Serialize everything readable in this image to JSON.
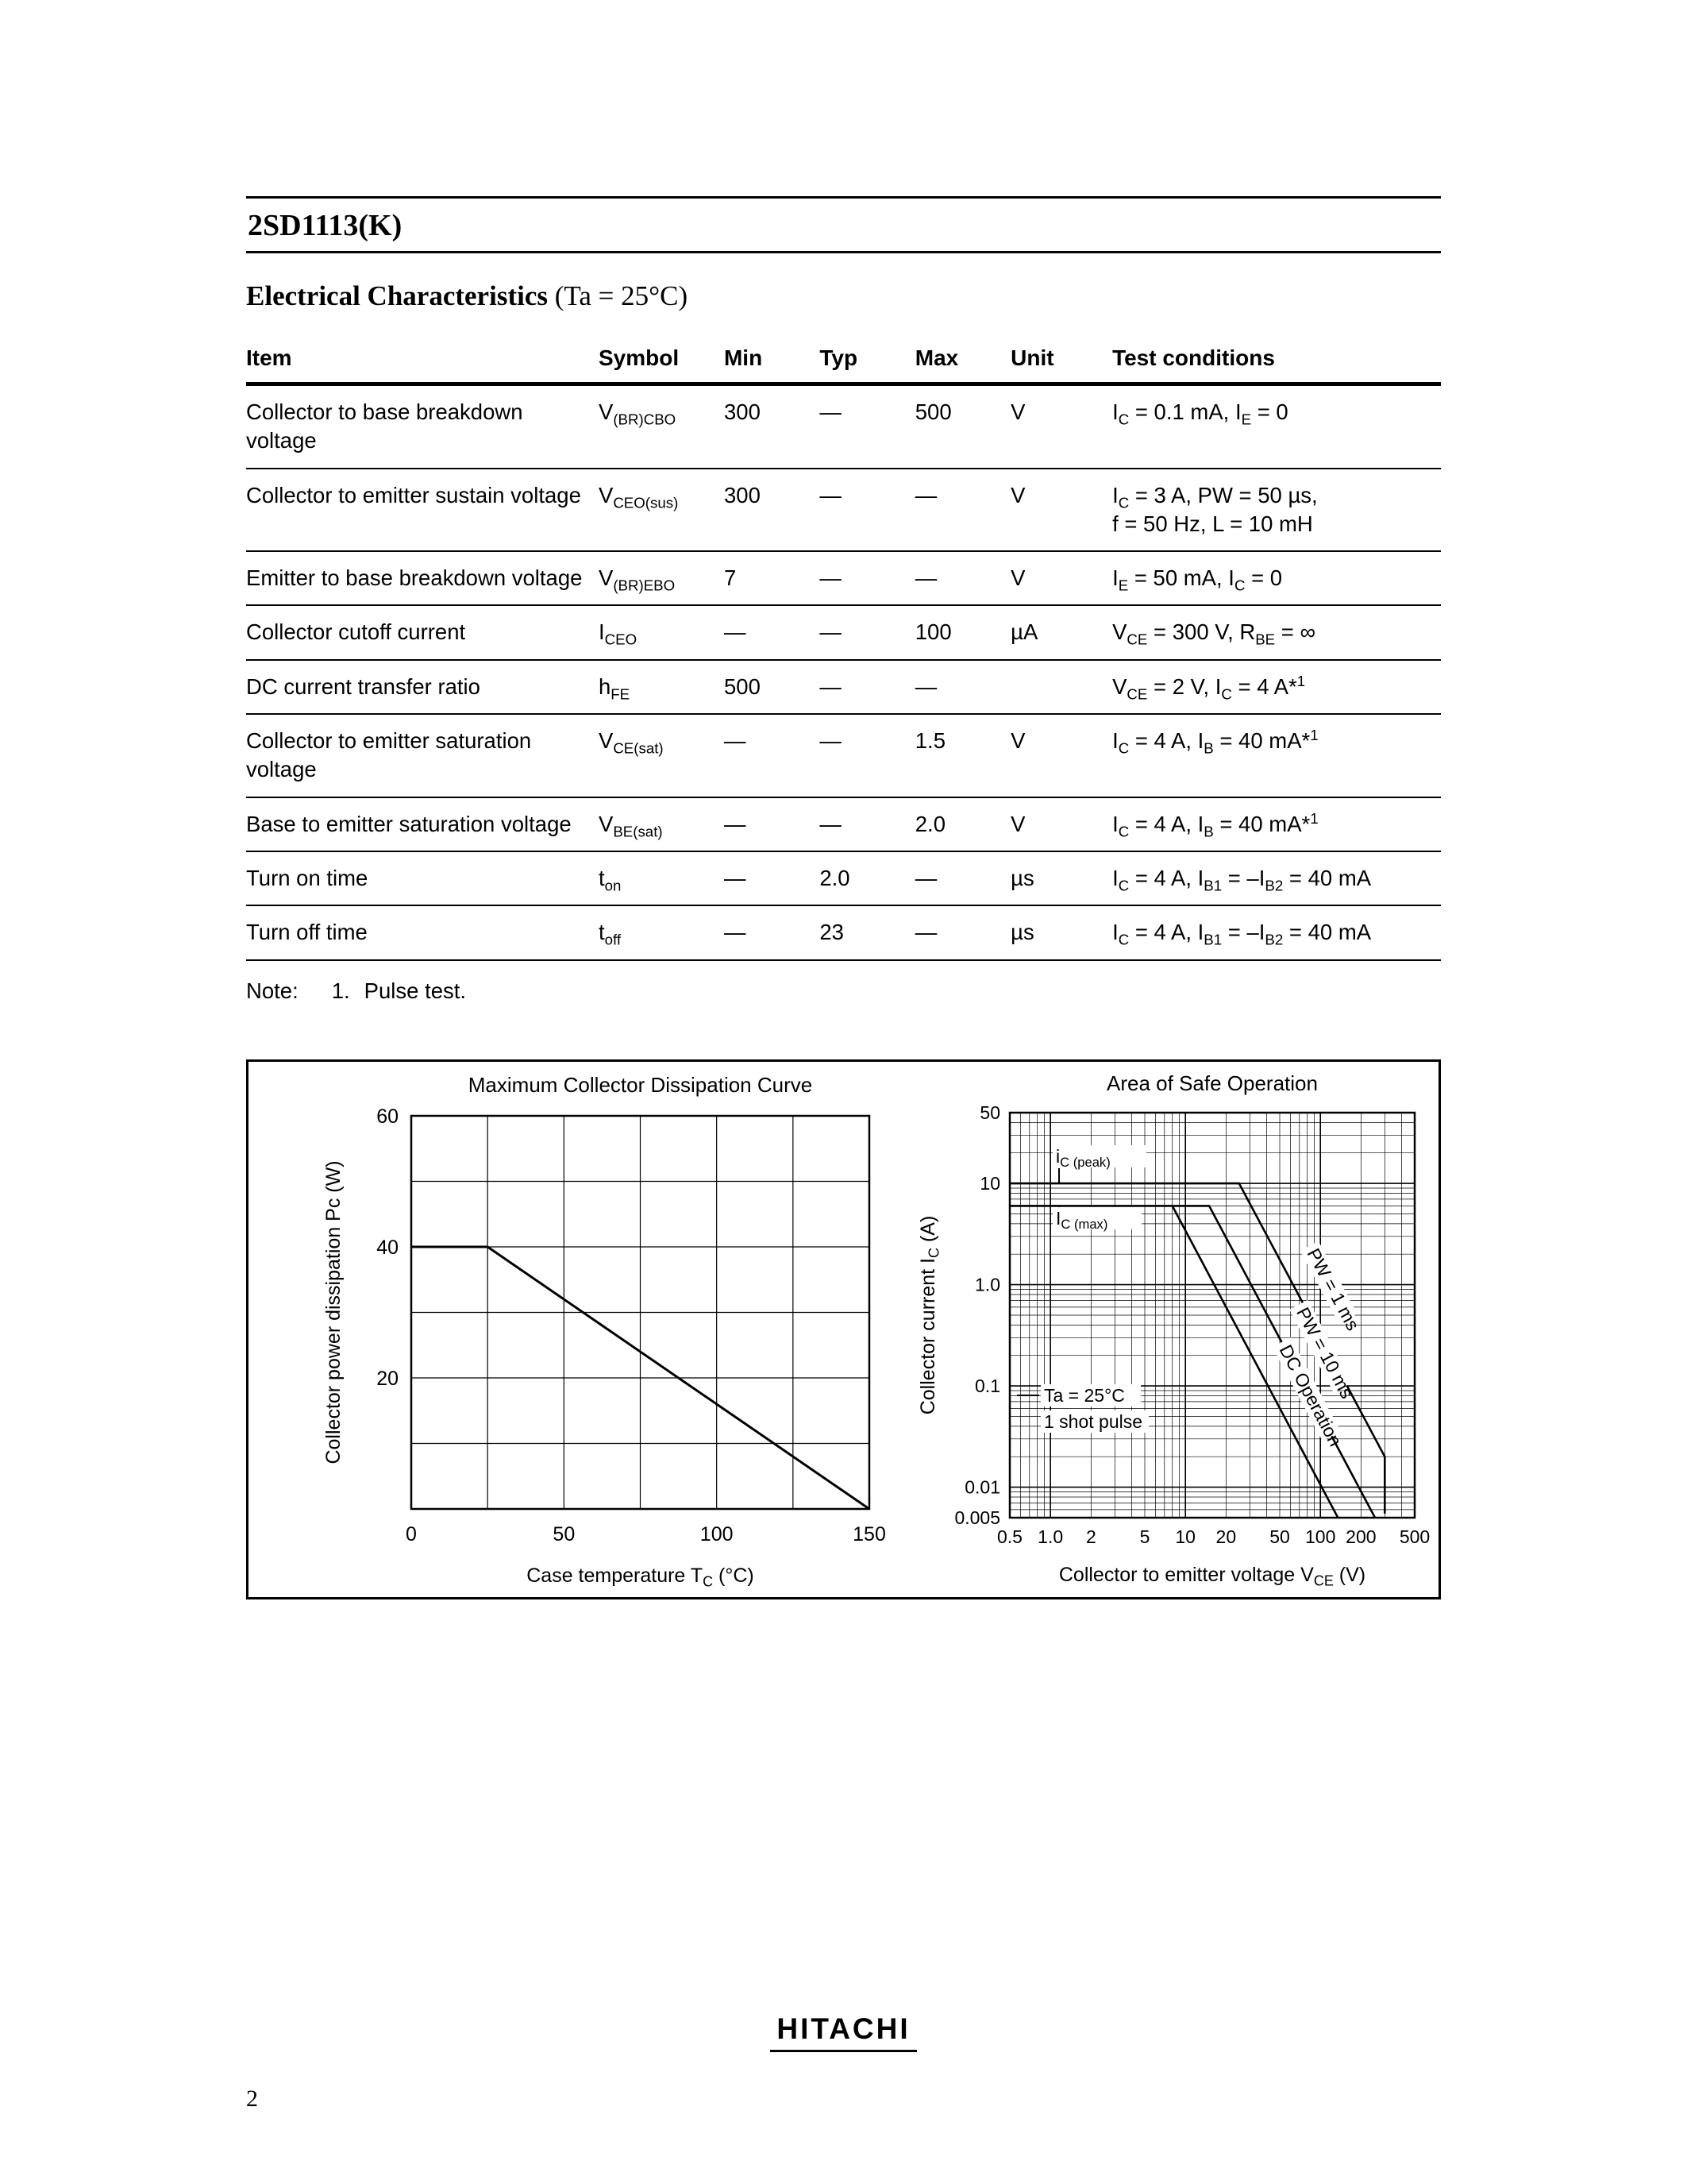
{
  "header": {
    "doc_id": "2SD1113(K)",
    "section_title": "Electrical Characteristics",
    "section_suffix": " (Ta = 25°C)"
  },
  "table": {
    "headers": [
      "Item",
      "Symbol",
      "Min",
      "Typ",
      "Max",
      "Unit",
      "Test conditions"
    ],
    "rows": [
      [
        "Collector to base breakdown voltage",
        "V~(BR)CBO~",
        "300",
        "—",
        "500",
        "V",
        "I~C~ = 0.1 mA, I~E~ = 0"
      ],
      [
        "Collector to emitter sustain voltage",
        "V~CEO(sus)~",
        "300",
        "—",
        "—",
        "V",
        "I~C~ = 3 A, PW = 50 µs,\nf = 50 Hz, L = 10 mH"
      ],
      [
        "Emitter to base breakdown voltage",
        "V~(BR)EBO~",
        "7",
        "—",
        "—",
        "V",
        "I~E~ = 50 mA, I~C~ = 0"
      ],
      [
        "Collector cutoff current",
        "I~CEO~",
        "—",
        "—",
        "100",
        "µA",
        "V~CE~ = 300 V, R~BE~ = ∞"
      ],
      [
        "DC current transfer ratio",
        "h~FE~",
        "500",
        "—",
        "—",
        "",
        "V~CE~ = 2 V, I~C~ = 4 A*^1^"
      ],
      [
        "Collector to emitter saturation voltage",
        "V~CE(sat)~",
        "—",
        "—",
        "1.5",
        "V",
        "I~C~ = 4 A, I~B~ = 40 mA*^1^"
      ],
      [
        "Base to emitter saturation voltage",
        "V~BE(sat)~",
        "—",
        "—",
        "2.0",
        "V",
        "I~C~ = 4 A, I~B~ = 40 mA*^1^"
      ],
      [
        "Turn on time",
        "t~on~",
        "—",
        "2.0",
        "—",
        "µs",
        "I~C~ = 4 A, I~B1~ = –I~B2~ = 40 mA"
      ],
      [
        "Turn off time",
        "t~off~",
        "—",
        "23",
        "—",
        "µs",
        "I~C~ = 4 A, I~B1~ = –I~B2~ = 40 mA"
      ]
    ]
  },
  "note": {
    "label": "Note:",
    "number": "1.",
    "text": "Pulse test."
  },
  "chart_data": [
    {
      "type": "line",
      "title": "Maximum Collector Dissipation Curve",
      "xlabel": "Case temperature  T~C~  (°C)",
      "ylabel": "Collector power dissipation  Pc  (W)",
      "xlim": [
        0,
        150
      ],
      "ylim": [
        0,
        60
      ],
      "x_ticks": [
        0,
        50,
        100,
        150
      ],
      "y_ticks": [
        20,
        40,
        60
      ],
      "x_grid_step": 25,
      "y_grid_step": 10,
      "grid": true,
      "series": [
        {
          "name": "Maximum collector dissipation",
          "points": [
            [
              0,
              40
            ],
            [
              25,
              40
            ],
            [
              150,
              0
            ]
          ]
        }
      ]
    },
    {
      "type": "line",
      "scale": "log-log",
      "title": "Area of Safe Operation",
      "xlabel": "Collector to emitter voltage  V~CE~  (V)",
      "ylabel": "Collector current  I~C~  (A)",
      "xlim": [
        0.5,
        500
      ],
      "ylim": [
        0.005,
        50
      ],
      "x_ticks": [
        "0.5",
        "1.0",
        "2",
        "5",
        "10",
        "20",
        "50",
        "100",
        "200",
        "500"
      ],
      "y_ticks": [
        "50",
        "10",
        "1.0",
        "0.1",
        "0.01",
        "0.005"
      ],
      "grid": true,
      "series": [
        {
          "name": "PW = 1 ms",
          "points": [
            [
              0.5,
              10
            ],
            [
              25,
              10
            ],
            [
              300,
              0.02
            ],
            [
              300,
              0.0055
            ]
          ]
        },
        {
          "name": "PW = 10 ms",
          "points": [
            [
              0.5,
              6
            ],
            [
              15,
              6
            ],
            [
              254,
              0.005
            ]
          ]
        },
        {
          "name": "DC Operation",
          "points": [
            [
              8,
              6
            ],
            [
              135,
              0.005
            ]
          ]
        }
      ],
      "annotations": {
        "peak": "i~C (peak)~",
        "max": "I~C (max)~",
        "ta": "Ta = 25°C",
        "pulse": "1 shot pulse"
      }
    }
  ],
  "footer": {
    "logo": "HITACHI",
    "page_number": "2"
  }
}
